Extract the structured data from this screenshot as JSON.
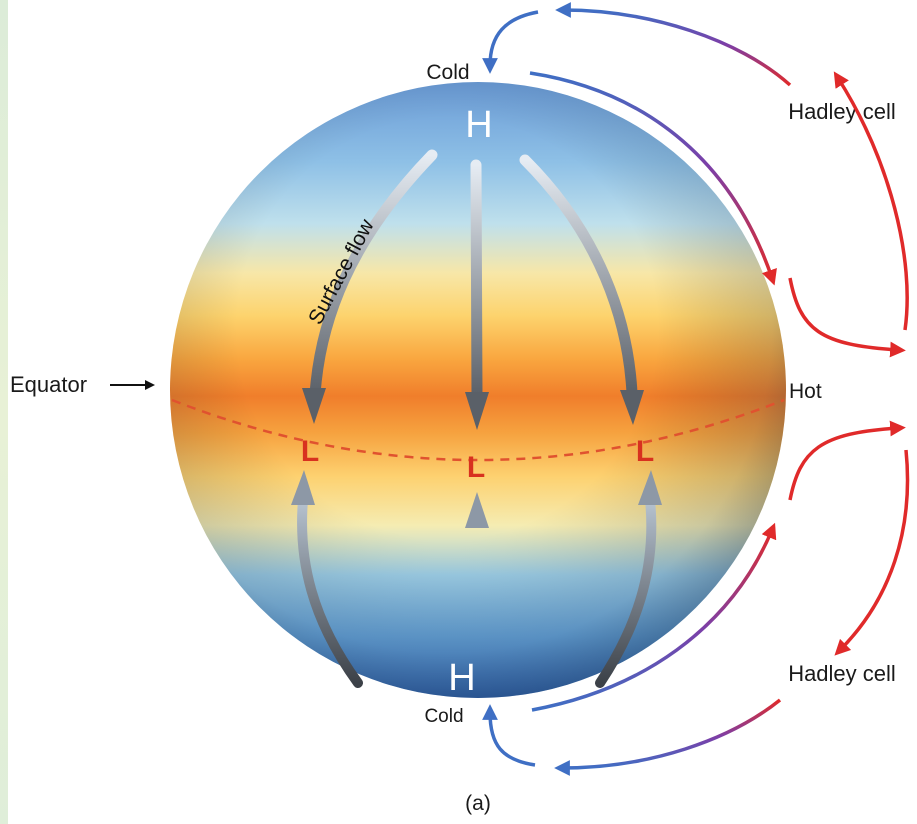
{
  "labels": {
    "cold_top": "Cold",
    "cold_bottom": "Cold",
    "high_top": "H",
    "high_bottom": "H",
    "low": "L",
    "equator": "Equator",
    "hot": "Hot",
    "surface_flow": "Surface flow",
    "hadley_top": "Hadley cell",
    "hadley_bottom": "Hadley cell",
    "caption": "(a)"
  },
  "colors": {
    "cold_arrow": "#3f6fc4",
    "hot_arrow": "#e02a2a",
    "low_marker": "#d8311f",
    "equator_line": "#e0522f",
    "surface_arrow": "#6d7278"
  }
}
